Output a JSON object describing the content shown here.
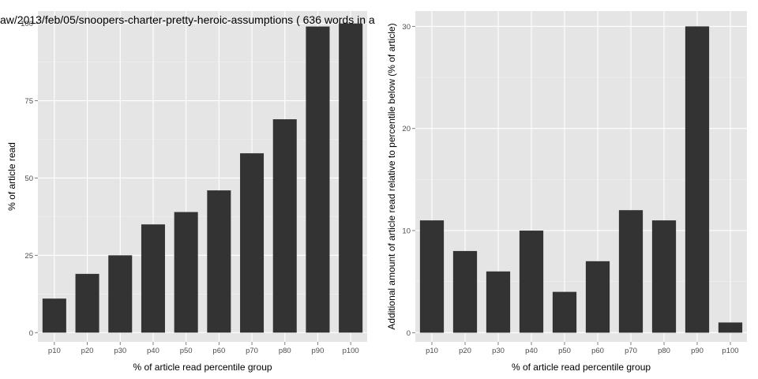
{
  "chart_data": [
    {
      "type": "bar",
      "title": "aw/2013/feb/05/snoopers-charter-pretty-heroic-assumptions ( 636 words in a",
      "xlabel": "% of article read percentile group",
      "ylabel": "% of article read",
      "categories": [
        "p10",
        "p20",
        "p30",
        "p40",
        "p50",
        "p60",
        "p70",
        "p80",
        "p90",
        "p100"
      ],
      "values": [
        11,
        19,
        25,
        35,
        39,
        46,
        58,
        69,
        99,
        100
      ],
      "ylim": [
        -3,
        104
      ],
      "yticks": [
        0,
        25,
        50,
        75,
        100
      ],
      "grid": true,
      "legend": "none",
      "bar_color": "#333333",
      "panel_color": "#e5e5e5"
    },
    {
      "type": "bar",
      "title": "",
      "xlabel": "% of article read percentile group",
      "ylabel": "Additional amount of article read relative to percentile below (% of article)",
      "categories": [
        "p10",
        "p20",
        "p30",
        "p40",
        "p50",
        "p60",
        "p70",
        "p80",
        "p90",
        "p100"
      ],
      "values": [
        11,
        8,
        6,
        10,
        4,
        7,
        12,
        11,
        30,
        1
      ],
      "ylim": [
        -0.9,
        31.5
      ],
      "yticks": [
        0,
        10,
        20,
        30
      ],
      "grid": true,
      "legend": "none",
      "bar_color": "#333333",
      "panel_color": "#e5e5e5"
    }
  ]
}
